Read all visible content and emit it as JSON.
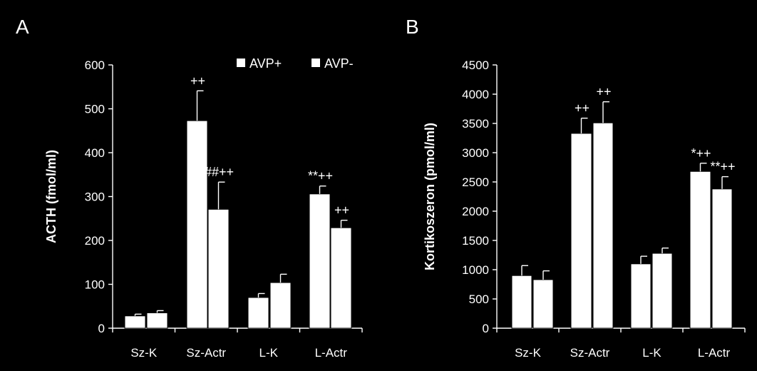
{
  "chart_data": [
    {
      "type": "bar",
      "panel_label": "A",
      "ylabel": "ACTH (fmol/ml)",
      "ylim": [
        0,
        600
      ],
      "yticks": [
        0,
        100,
        200,
        300,
        400,
        500,
        600
      ],
      "categories": [
        "Sz-K",
        "Sz-Actr",
        "L-K",
        "L-Actr"
      ],
      "series": [
        {
          "name": "AVP+",
          "values": [
            28,
            473,
            70,
            306
          ],
          "errors": [
            4,
            68,
            9,
            18
          ],
          "annotations": [
            "",
            "++",
            "",
            "**++"
          ]
        },
        {
          "name": "AVP-",
          "values": [
            35,
            271,
            104,
            229
          ],
          "errors": [
            5,
            62,
            19,
            17
          ],
          "annotations": [
            "",
            "##++",
            "",
            "++"
          ]
        }
      ],
      "legend": "top-right",
      "grid": false
    },
    {
      "type": "bar",
      "panel_label": "B",
      "ylabel": "Kortikoszeron (pmol/ml)",
      "ylim": [
        0,
        4500
      ],
      "yticks": [
        0,
        500,
        1000,
        1500,
        2000,
        2500,
        3000,
        3500,
        4000,
        4500
      ],
      "categories": [
        "Sz-K",
        "Sz-Actr",
        "L-K",
        "L-Actr"
      ],
      "series": [
        {
          "name": "AVP+",
          "values": [
            900,
            3330,
            1100,
            2680
          ],
          "errors": [
            170,
            260,
            130,
            140
          ],
          "annotations": [
            "",
            "++",
            "",
            "*++"
          ]
        },
        {
          "name": "AVP-",
          "values": [
            830,
            3510,
            1280,
            2380
          ],
          "errors": [
            150,
            360,
            90,
            210
          ],
          "annotations": [
            "",
            "++",
            "",
            "**++"
          ]
        }
      ],
      "legend": "none",
      "grid": false
    }
  ],
  "colors": {
    "background": "#000000",
    "bars": "#ffffff",
    "text": "#ffffff"
  }
}
